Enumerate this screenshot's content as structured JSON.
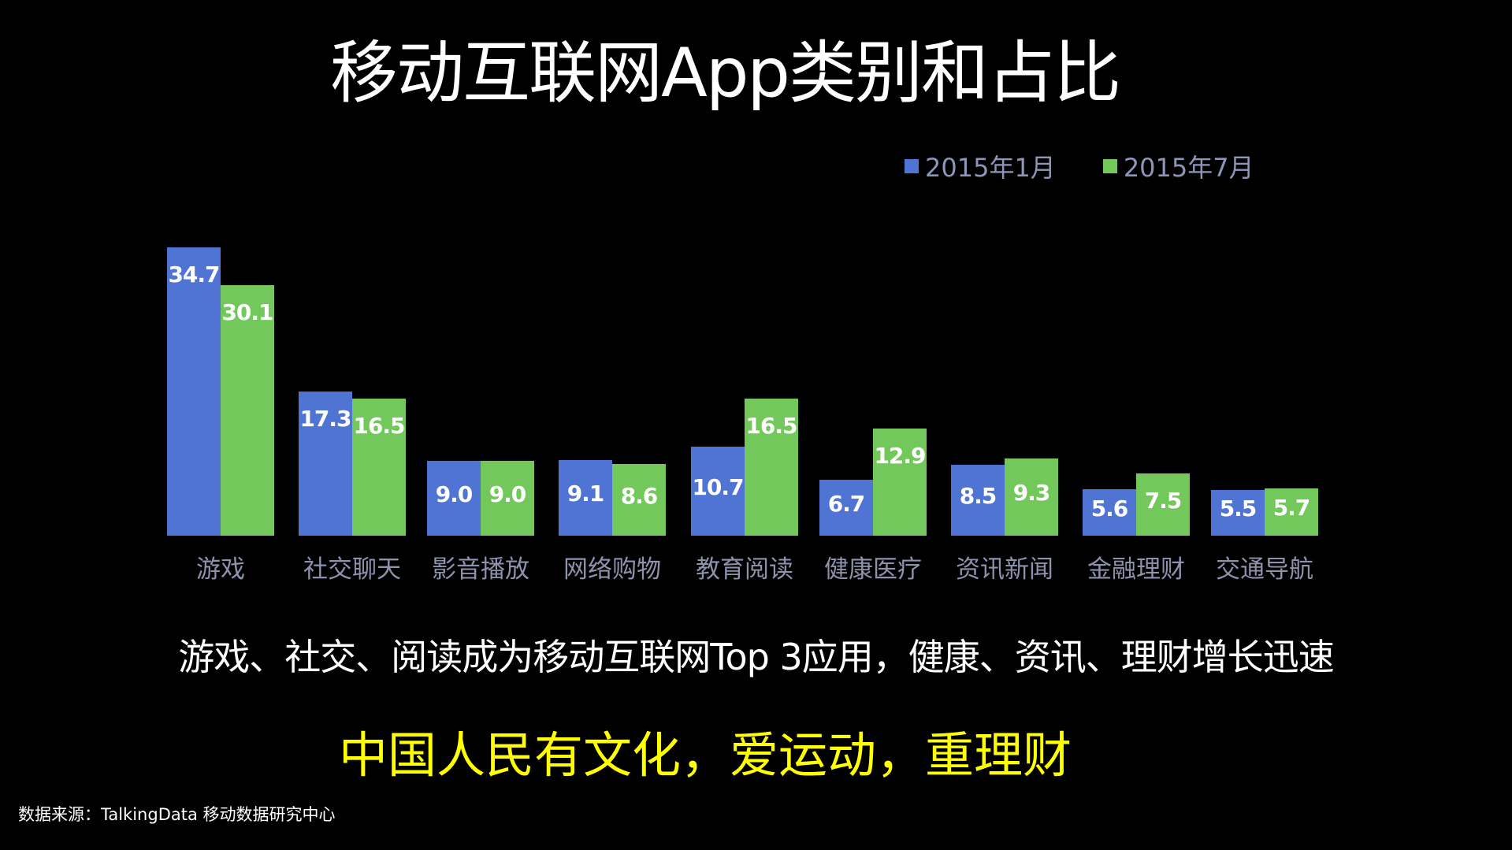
{
  "title": "移动互联网App类别和占比",
  "legend": [
    {
      "label": "2015年1月",
      "color": "#4f74d4"
    },
    {
      "label": "2015年7月",
      "color": "#72c85a"
    }
  ],
  "subtitle": "游戏、社交、阅读成为移动互联网Top 3应用，健康、资讯、理财增长迅速",
  "slogan": "中国人民有文化，爱运动，重理财",
  "source": "数据来源：TalkingData 移动数据研究中心",
  "chart_data": {
    "type": "bar",
    "title": "移动互联网App类别和占比",
    "xlabel": "",
    "ylabel": "",
    "categories": [
      "游戏",
      "社交聊天",
      "影音播放",
      "网络购物",
      "教育阅读",
      "健康医疗",
      "资讯新闻",
      "金融理财",
      "交通导航"
    ],
    "series": [
      {
        "name": "2015年1月",
        "color": "#4f74d4",
        "values": [
          34.7,
          17.3,
          9.0,
          9.1,
          10.7,
          6.7,
          8.5,
          5.6,
          5.5
        ]
      },
      {
        "name": "2015年7月",
        "color": "#72c85a",
        "values": [
          30.1,
          16.5,
          9.0,
          8.6,
          16.5,
          12.9,
          9.3,
          7.5,
          5.7
        ]
      }
    ],
    "value_labels": [
      [
        "34.7",
        "17.3",
        "9.0",
        "9.1",
        "10.7",
        "6.7",
        "8.5",
        "5.6",
        "5.5"
      ],
      [
        "30.1",
        "16.5",
        "9.0",
        "8.6",
        "16.5",
        "12.9",
        "9.3",
        "7.5",
        "5.7"
      ]
    ],
    "grid": false,
    "legend_position": "top-right",
    "axis_visible": false
  }
}
